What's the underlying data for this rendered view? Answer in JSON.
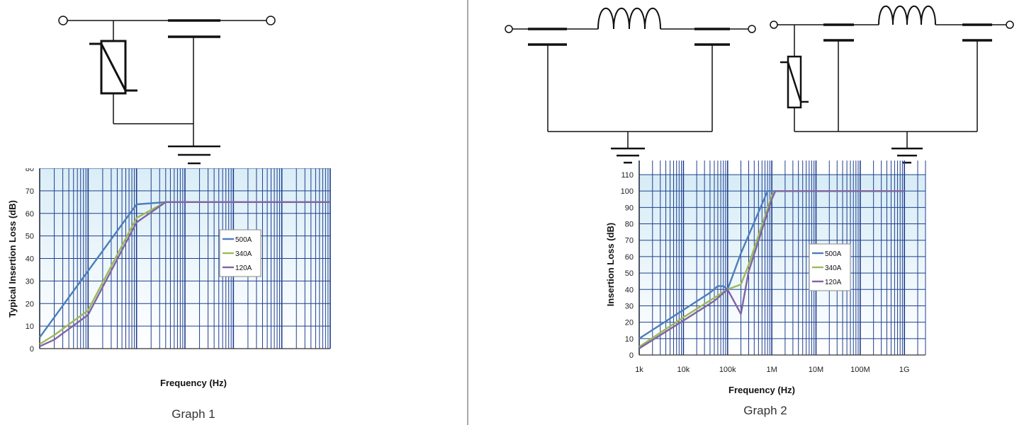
{
  "colors": {
    "series_500A": "#4a7ebb",
    "series_340A": "#9bbb59",
    "series_120A": "#8064a2",
    "grid": "#1f3f8f",
    "plot_bg_top": "#d7ecf6",
    "plot_bg_bottom": "#ffffff"
  },
  "chart_data": [
    {
      "type": "line",
      "title": "",
      "caption": "Graph 1",
      "xlabel": "Frequency (Hz)",
      "ylabel": "Typical Insertion Loss (dB)",
      "xscale": "log",
      "xlim": [
        1000,
        1000000000
      ],
      "ylim": [
        0,
        80
      ],
      "yticks": [
        0,
        10,
        20,
        30,
        40,
        50,
        60,
        70,
        80
      ],
      "xtick_labels": [],
      "grid": true,
      "legend": "right",
      "series": [
        {
          "name": "500A",
          "x": [
            1000,
            100000,
            400000,
            1000000000
          ],
          "y": [
            5,
            64,
            65,
            65
          ]
        },
        {
          "name": "340A",
          "x": [
            1000,
            2000,
            10000,
            100000,
            400000,
            1000000000
          ],
          "y": [
            2,
            6,
            17,
            58,
            65,
            65
          ]
        },
        {
          "name": "120A",
          "x": [
            1000,
            2000,
            10000,
            100000,
            400000,
            1000000000
          ],
          "y": [
            1,
            4,
            15,
            56,
            65,
            65
          ]
        }
      ]
    },
    {
      "type": "line",
      "title": "",
      "caption": "Graph 2",
      "xlabel": "Frequency (Hz)",
      "ylabel": "Insertion Loss (dB)",
      "xscale": "log",
      "xlim": [
        1000,
        3000000000
      ],
      "ylim": [
        0,
        110
      ],
      "yticks": [
        0,
        10,
        20,
        30,
        40,
        50,
        60,
        70,
        80,
        90,
        100,
        110
      ],
      "xticks": [
        1000,
        10000,
        100000,
        1000000,
        10000000,
        100000000,
        1000000000
      ],
      "xtick_labels": [
        "1k",
        "10k",
        "100k",
        "1M",
        "10M",
        "100M",
        "1G"
      ],
      "grid": true,
      "legend": "right",
      "series": [
        {
          "name": "500A",
          "x": [
            1000,
            40000,
            60000,
            80000,
            100000,
            200000,
            800000,
            1000000,
            1000000000
          ],
          "y": [
            10,
            38,
            42,
            42,
            40,
            62,
            100,
            100,
            100
          ]
        },
        {
          "name": "340A",
          "x": [
            1000,
            10000,
            100000,
            200000,
            300000,
            1000000,
            1200000,
            1000000000
          ],
          "y": [
            5,
            23,
            40,
            43,
            55,
            97,
            100,
            100
          ]
        },
        {
          "name": "120A",
          "x": [
            1000,
            10000,
            50000,
            100000,
            200000,
            300000,
            1000000,
            1200000,
            1000000000
          ],
          "y": [
            4,
            21,
            33,
            40,
            25,
            51,
            95,
            100,
            100
          ]
        }
      ]
    }
  ]
}
